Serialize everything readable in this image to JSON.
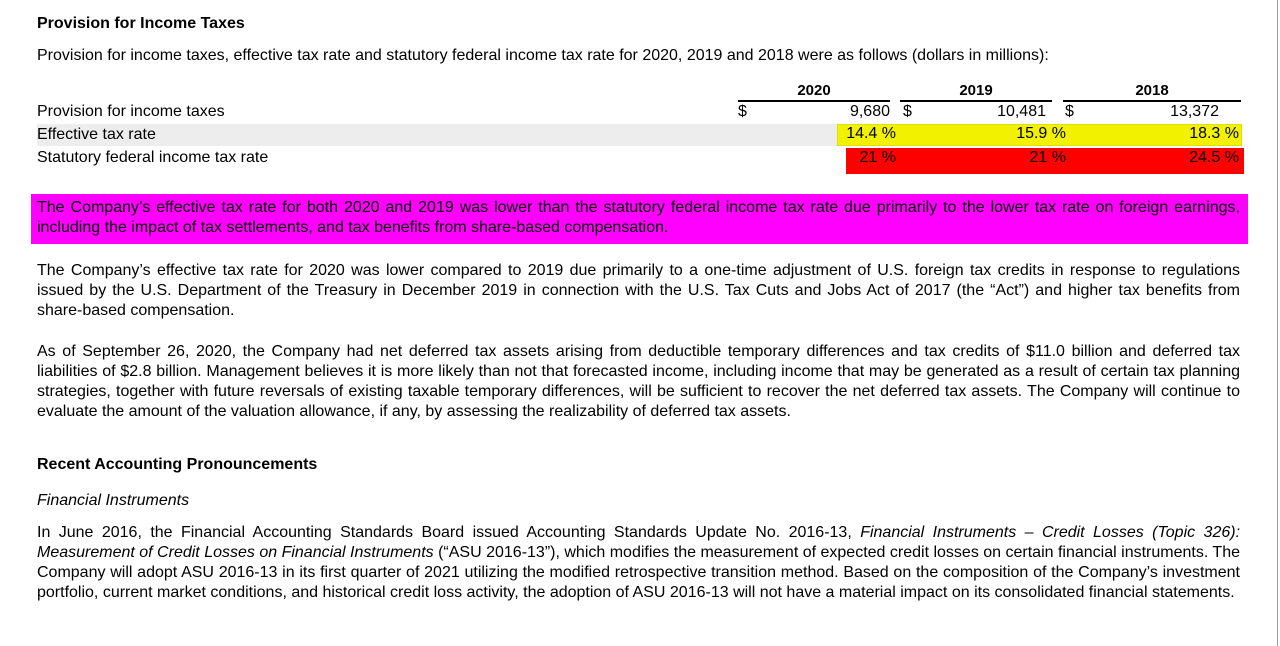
{
  "heading": "Provision for Income Taxes",
  "intro": "Provision for income taxes, effective tax rate and statutory federal income tax rate for 2020, 2019 and 2018 were as follows (dollars in millions):",
  "table": {
    "years": [
      "2020",
      "2019",
      "2018"
    ],
    "rows": [
      {
        "label": "Provision for income taxes",
        "currency": "$",
        "values": [
          "9,680",
          "10,481",
          "13,372"
        ]
      },
      {
        "label": "Effective tax rate",
        "values": [
          "14.4 %",
          "15.9 %",
          "18.3 %"
        ],
        "highlight": "#f2f200"
      },
      {
        "label": "Statutory federal income tax rate",
        "values": [
          "21 %",
          "21 %",
          "24.5 %"
        ],
        "highlight": "#ff0000"
      }
    ]
  },
  "highlighted_paragraph": {
    "text": "The Company’s effective tax rate for both 2020 and 2019 was lower than the statutory federal income tax rate due primarily to the lower tax rate on foreign earnings, including the impact of tax settlements, and tax benefits from share-based compensation.",
    "color": "#ff00ff"
  },
  "paragraph2": "The Company’s effective tax rate for 2020 was lower compared to 2019 due primarily to a one-time adjustment of U.S. foreign tax credits in response to regulations issued by the U.S. Department of the Treasury in December 2019 in connection with the U.S. Tax Cuts and Jobs Act of 2017 (the “Act”) and higher tax benefits from share-based compensation.",
  "paragraph3": "As of September 26, 2020, the Company had net deferred tax assets arising from deductible temporary differences and tax credits of $11.0 billion and deferred tax liabilities of $2.8 billion. Management believes it is more likely than not that forecasted income, including income that may be generated as a result of certain tax planning strategies, together with future reversals of existing taxable temporary differences, will be sufficient to recover the net deferred tax assets. The Company will continue to evaluate the amount of the valuation allowance, if any, by assessing the realizability of deferred tax assets.",
  "heading2": "Recent Accounting Pronouncements",
  "subheading": "Financial Instruments",
  "paragraph4": {
    "part1": "In June 2016, the Financial Accounting Standards Board issued Accounting Standards Update No. 2016-13, ",
    "italic": "Financial Instruments – Credit Losses (Topic 326): Measurement of Credit Losses on Financial Instruments",
    "part2": " (“ASU 2016-13”), which modifies the measurement of expected credit losses on certain financial instruments. The Company will adopt ASU 2016-13 in its first quarter of 2021 utilizing the modified retrospective transition method. Based on the composition of the Company’s investment portfolio, current market conditions, and historical credit loss activity, the adoption of ASU 2016-13 will not have a material impact on its consolidated financial statements."
  }
}
